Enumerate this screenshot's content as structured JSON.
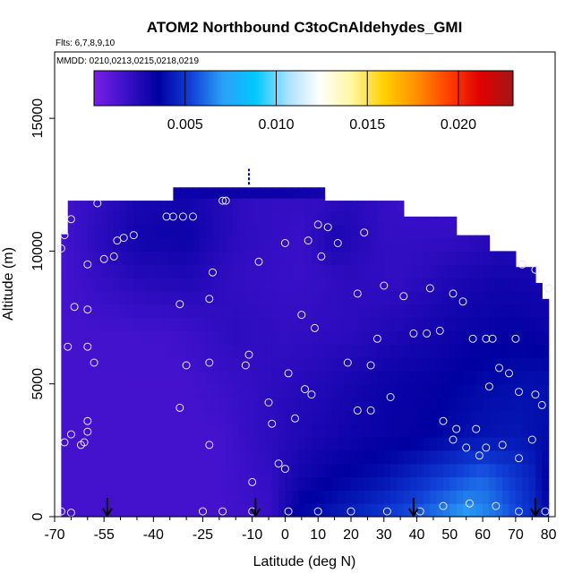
{
  "chart_data": {
    "type": "heatmap",
    "title": "ATOM2 Northbound C3toCnAldehydes_GMI",
    "flights_label": "Flts: 6,7,8,9,10",
    "dates_label": "MMDD: 0210,0213,0215,0218,0219",
    "xlabel": "Latitude (deg N)",
    "ylabel": "Altitude (m)",
    "xlim": [
      -70,
      82
    ],
    "ylim": [
      0,
      17500
    ],
    "x_ticks": [
      -70,
      -55,
      -40,
      -25,
      -10,
      0,
      10,
      20,
      30,
      40,
      50,
      60,
      70,
      80
    ],
    "x_tick_labels": [
      "-70",
      "-55",
      "-40",
      "-25",
      "-10",
      "0",
      "10",
      "20",
      "30",
      "40",
      "50",
      "60",
      "70",
      "80"
    ],
    "x_minor_ticks": [
      -65,
      -60,
      -50,
      -45,
      -35,
      -30,
      -20,
      -15,
      -5,
      5,
      15,
      25,
      35,
      45,
      55,
      65,
      75
    ],
    "y_ticks": [
      0,
      5000,
      10000,
      15000
    ],
    "y_tick_labels": [
      "0",
      "5000",
      "10000",
      "15000"
    ],
    "colorbar": {
      "min": 0.0,
      "max": 0.023,
      "ticks": [
        0.005,
        0.01,
        0.015,
        0.02
      ],
      "tick_labels": [
        "0.005",
        "0.010",
        "0.015",
        "0.020"
      ],
      "colors": [
        "#7a1ee6",
        "#3a10c8",
        "#0000a0",
        "#1040d8",
        "#2aa0f8",
        "#00c8ff",
        "#a8e0ff",
        "#ffffff",
        "#fff7a0",
        "#ffd000",
        "#ff9000",
        "#ff4000",
        "#e00000",
        "#a01818"
      ]
    },
    "field_rows": [
      {
        "alt": 0,
        "vals": [
          [
            -68,
            0.0015
          ],
          [
            -20,
            0.0015
          ],
          [
            -5,
            0.0018
          ],
          [
            0,
            0.0028
          ],
          [
            5,
            0.0038
          ],
          [
            20,
            0.0045
          ],
          [
            40,
            0.0058
          ],
          [
            55,
            0.0072
          ],
          [
            65,
            0.0062
          ],
          [
            75,
            0.0048
          ],
          [
            81,
            0.0035
          ]
        ]
      },
      {
        "alt": 1500,
        "vals": [
          [
            -68,
            0.0015
          ],
          [
            -20,
            0.0015
          ],
          [
            -5,
            0.002
          ],
          [
            5,
            0.003
          ],
          [
            15,
            0.0035
          ],
          [
            30,
            0.004
          ],
          [
            45,
            0.005
          ],
          [
            60,
            0.006
          ],
          [
            75,
            0.0045
          ],
          [
            81,
            0.0032
          ]
        ]
      },
      {
        "alt": 3000,
        "vals": [
          [
            -68,
            0.0015
          ],
          [
            -20,
            0.0015
          ],
          [
            -5,
            0.0022
          ],
          [
            10,
            0.0028
          ],
          [
            25,
            0.0032
          ],
          [
            40,
            0.0034
          ],
          [
            55,
            0.004
          ],
          [
            70,
            0.0042
          ],
          [
            81,
            0.0038
          ]
        ]
      },
      {
        "alt": 5000,
        "vals": [
          [
            -68,
            0.0015
          ],
          [
            -30,
            0.0015
          ],
          [
            -10,
            0.002
          ],
          [
            10,
            0.0025
          ],
          [
            30,
            0.0032
          ],
          [
            45,
            0.0034
          ],
          [
            60,
            0.0038
          ],
          [
            75,
            0.004
          ],
          [
            81,
            0.004
          ]
        ]
      },
      {
        "alt": 7000,
        "vals": [
          [
            -68,
            0.0015
          ],
          [
            -35,
            0.0016
          ],
          [
            -15,
            0.0022
          ],
          [
            0,
            0.002
          ],
          [
            20,
            0.0022
          ],
          [
            40,
            0.0028
          ],
          [
            55,
            0.0032
          ],
          [
            70,
            0.0034
          ],
          [
            81,
            0.0032
          ]
        ]
      },
      {
        "alt": 9000,
        "vals": [
          [
            -68,
            0.0015
          ],
          [
            -45,
            0.0024
          ],
          [
            -30,
            0.0026
          ],
          [
            -15,
            0.002
          ],
          [
            5,
            0.0018
          ],
          [
            20,
            0.0022
          ],
          [
            35,
            0.002
          ],
          [
            50,
            0.0026
          ],
          [
            65,
            0.003
          ],
          [
            81,
            0.0028
          ]
        ]
      },
      {
        "alt": 10500,
        "vals": [
          [
            -68,
            0.0015
          ],
          [
            -45,
            0.003
          ],
          [
            -30,
            0.0032
          ],
          [
            -15,
            0.0022
          ],
          [
            5,
            0.0018
          ],
          [
            15,
            0.0028
          ],
          [
            30,
            0.002
          ],
          [
            50,
            0.002
          ],
          [
            65,
            0.0024
          ]
        ]
      },
      {
        "alt": 11800,
        "vals": [
          [
            -65,
            0.0016
          ],
          [
            -45,
            0.0028
          ],
          [
            -30,
            0.003
          ],
          [
            -10,
            0.002
          ],
          [
            10,
            0.002
          ],
          [
            20,
            0.0024
          ],
          [
            35,
            0.0018
          ]
        ]
      },
      {
        "alt": 12200,
        "vals": [
          [
            -33,
            0.0032
          ],
          [
            0,
            0.0032
          ],
          [
            13,
            0.003
          ]
        ]
      }
    ],
    "outline_alt_top": [
      [
        -68,
        10000
      ],
      [
        -67,
        11200
      ],
      [
        -65,
        11900
      ],
      [
        -33,
        11900
      ],
      [
        -33,
        12400
      ],
      [
        13,
        12400
      ],
      [
        13,
        11900
      ],
      [
        36,
        11900
      ],
      [
        36,
        11300
      ],
      [
        52,
        11300
      ],
      [
        52,
        10600
      ],
      [
        62,
        10600
      ],
      [
        62,
        10000
      ],
      [
        70,
        10000
      ],
      [
        70,
        9400
      ],
      [
        76,
        9400
      ],
      [
        76,
        8800
      ],
      [
        79,
        8800
      ],
      [
        79,
        8200
      ],
      [
        81,
        8200
      ],
      [
        81,
        0
      ]
    ],
    "overlay_marker": {
      "lat": -11,
      "alt_from": 12500,
      "alt_to": 13100,
      "color": "#0000cc"
    },
    "sample_points": [
      [
        -68,
        10100
      ],
      [
        -67,
        10600
      ],
      [
        -65,
        11200
      ],
      [
        -57,
        11800
      ],
      [
        -66,
        6400
      ],
      [
        -64,
        7900
      ],
      [
        -60,
        9500
      ],
      [
        -55,
        9700
      ],
      [
        -51,
        10400
      ],
      [
        -49,
        10500
      ],
      [
        -46,
        10600
      ],
      [
        -52,
        9800
      ],
      [
        -60,
        7800
      ],
      [
        -60,
        6400
      ],
      [
        -58,
        5800
      ],
      [
        -60,
        3600
      ],
      [
        -61,
        2800
      ],
      [
        -67,
        2800
      ],
      [
        -65,
        3100
      ],
      [
        -62,
        2700
      ],
      [
        -60,
        3200
      ],
      [
        -68,
        200
      ],
      [
        -65,
        150
      ],
      [
        -36,
        11300
      ],
      [
        -34,
        11300
      ],
      [
        -31,
        11300
      ],
      [
        -28,
        11300
      ],
      [
        -19,
        11900
      ],
      [
        -18,
        11900
      ],
      [
        -22,
        9200
      ],
      [
        -23,
        8200
      ],
      [
        -32,
        8000
      ],
      [
        -30,
        5700
      ],
      [
        -32,
        4100
      ],
      [
        -23,
        5800
      ],
      [
        -23,
        2700
      ],
      [
        -25,
        200
      ],
      [
        -12,
        5700
      ],
      [
        -11,
        6100
      ],
      [
        -10,
        1300
      ],
      [
        -8,
        9600
      ],
      [
        -5,
        4300
      ],
      [
        -4,
        3500
      ],
      [
        -2,
        2000
      ],
      [
        0,
        1800
      ],
      [
        3,
        3700
      ],
      [
        1,
        5400
      ],
      [
        5,
        7600
      ],
      [
        6,
        4800
      ],
      [
        8,
        4600
      ],
      [
        9,
        7100
      ],
      [
        7,
        10400
      ],
      [
        0,
        10300
      ],
      [
        10,
        11000
      ],
      [
        13,
        10900
      ],
      [
        16,
        10300
      ],
      [
        11,
        9800
      ],
      [
        22,
        8400
      ],
      [
        24,
        10700
      ],
      [
        30,
        8700
      ],
      [
        28,
        6700
      ],
      [
        26,
        5700
      ],
      [
        19,
        5800
      ],
      [
        22,
        4000
      ],
      [
        26,
        4000
      ],
      [
        32,
        4500
      ],
      [
        36,
        8300
      ],
      [
        39,
        6900
      ],
      [
        44,
        8600
      ],
      [
        43,
        6900
      ],
      [
        47,
        7000
      ],
      [
        48,
        3600
      ],
      [
        52,
        3300
      ],
      [
        51,
        2900
      ],
      [
        55,
        2600
      ],
      [
        58,
        3300
      ],
      [
        62,
        4900
      ],
      [
        65,
        5600
      ],
      [
        68,
        5400
      ],
      [
        71,
        4700
      ],
      [
        75,
        2900
      ],
      [
        71,
        2200
      ],
      [
        76,
        4600
      ],
      [
        78,
        4200
      ],
      [
        80,
        8600
      ],
      [
        76,
        9300
      ],
      [
        72,
        9500
      ],
      [
        70,
        6700
      ],
      [
        63,
        6700
      ],
      [
        61,
        6700
      ],
      [
        57,
        6700
      ],
      [
        54,
        8100
      ],
      [
        51,
        8400
      ],
      [
        66,
        2700
      ],
      [
        61,
        2600
      ],
      [
        59,
        2300
      ],
      [
        48,
        400
      ],
      [
        41,
        200
      ],
      [
        31,
        200
      ],
      [
        20,
        200
      ],
      [
        10,
        200
      ],
      [
        1,
        200
      ],
      [
        -10,
        200
      ],
      [
        -19,
        200
      ],
      [
        71,
        200
      ],
      [
        79,
        200
      ],
      [
        64,
        400
      ],
      [
        56,
        500
      ]
    ],
    "arrows": [
      -54,
      -9,
      39,
      76
    ]
  }
}
